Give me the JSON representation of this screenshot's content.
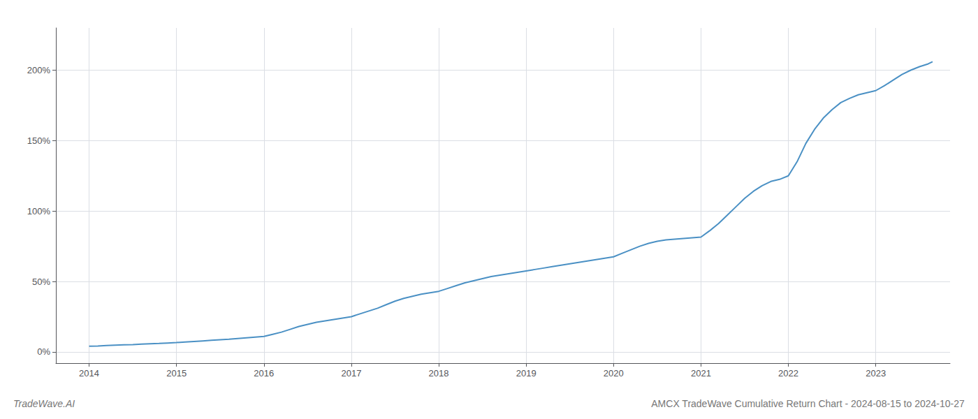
{
  "chart_data": {
    "type": "line",
    "title": "AMCX TradeWave Cumulative Return Chart - 2024-08-15 to 2024-10-27",
    "annotations": [
      "TradeWave.AI"
    ],
    "color": "#4a90c4",
    "x": [
      2014.0,
      2014.1,
      2014.2,
      2014.3,
      2014.4,
      2014.5,
      2014.6,
      2014.7,
      2014.8,
      2014.9,
      2015.0,
      2015.1,
      2015.2,
      2015.3,
      2015.4,
      2015.5,
      2015.6,
      2015.7,
      2015.8,
      2015.9,
      2016.0,
      2016.1,
      2016.2,
      2016.3,
      2016.4,
      2016.5,
      2016.6,
      2016.7,
      2016.8,
      2016.9,
      2017.0,
      2017.1,
      2017.2,
      2017.3,
      2017.4,
      2017.5,
      2017.6,
      2017.7,
      2017.8,
      2017.9,
      2018.0,
      2018.1,
      2018.2,
      2018.3,
      2018.4,
      2018.5,
      2018.6,
      2018.7,
      2018.8,
      2018.9,
      2019.0,
      2019.1,
      2019.2,
      2019.3,
      2019.4,
      2019.5,
      2019.6,
      2019.7,
      2019.8,
      2019.9,
      2020.0,
      2020.1,
      2020.2,
      2020.3,
      2020.4,
      2020.5,
      2020.6,
      2020.7,
      2020.8,
      2020.9,
      2021.0,
      2021.1,
      2021.2,
      2021.3,
      2021.4,
      2021.5,
      2021.6,
      2021.7,
      2021.8,
      2021.9,
      2022.0,
      2022.1,
      2022.2,
      2022.3,
      2022.4,
      2022.5,
      2022.6,
      2022.7,
      2022.8,
      2022.9,
      2023.0,
      2023.1,
      2023.2,
      2023.3,
      2023.4,
      2023.5,
      2023.6,
      2023.65
    ],
    "values": [
      4.0,
      4.2,
      4.5,
      4.8,
      5.0,
      5.2,
      5.5,
      5.8,
      6.0,
      6.3,
      6.6,
      7.0,
      7.4,
      7.8,
      8.2,
      8.6,
      9.0,
      9.5,
      10.0,
      10.5,
      11.0,
      12.5,
      14.0,
      16.0,
      18.0,
      19.5,
      21.0,
      22.0,
      23.0,
      24.0,
      25.0,
      27.0,
      29.0,
      31.0,
      33.5,
      36.0,
      38.0,
      39.5,
      41.0,
      42.0,
      43.0,
      45.0,
      47.0,
      49.0,
      50.5,
      52.0,
      53.5,
      54.5,
      55.5,
      56.5,
      57.5,
      58.5,
      59.5,
      60.5,
      61.5,
      62.5,
      63.5,
      64.5,
      65.5,
      66.5,
      67.5,
      70.0,
      72.5,
      75.0,
      77.0,
      78.5,
      79.5,
      80.0,
      80.5,
      81.0,
      81.5,
      86.0,
      91.0,
      97.0,
      103.0,
      109.0,
      114.0,
      118.0,
      121.0,
      122.5,
      125.0,
      135.0,
      148.0,
      158.0,
      166.0,
      172.0,
      177.0,
      180.0,
      182.5,
      184.0,
      185.5,
      189.0,
      193.0,
      197.0,
      200.0,
      202.5,
      204.5,
      206.0
    ],
    "xlim": [
      2013.62,
      2023.85
    ],
    "xticks": [
      2014,
      2015,
      2016,
      2017,
      2018,
      2019,
      2020,
      2021,
      2022,
      2023
    ],
    "ylim": [
      -8,
      230
    ],
    "yticks": [
      {
        "value": 0,
        "label": "0%"
      },
      {
        "value": 50,
        "label": "50%"
      },
      {
        "value": 100,
        "label": "100%"
      },
      {
        "value": 150,
        "label": "150%"
      },
      {
        "value": 200,
        "label": "200%"
      }
    ],
    "grid": true
  }
}
